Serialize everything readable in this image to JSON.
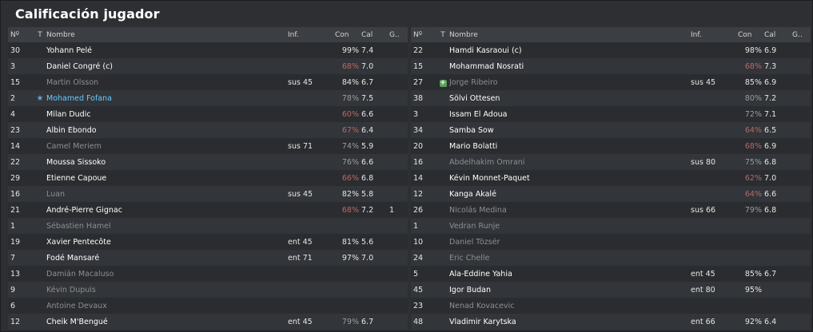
{
  "title": "Calificación jugador",
  "headers": {
    "num": "Nº",
    "t": "T",
    "name": "Nombre",
    "inf": "Inf.",
    "con": "Con",
    "cal": "Cal",
    "g": "G.."
  },
  "colors": {
    "low_condition": "#b56a6a",
    "star": "#66ccff",
    "muted": "#8d8f93"
  },
  "left": [
    {
      "num": "30",
      "name": "Yohann Pelé",
      "inf": "",
      "con": "99%",
      "cal": "7.4",
      "g": "",
      "state": "normal",
      "con_state": "normal",
      "icon": ""
    },
    {
      "num": "3",
      "name": "Daniel Congré (c)",
      "inf": "",
      "con": "68%",
      "cal": "7.0",
      "g": "",
      "state": "normal",
      "con_state": "low",
      "icon": ""
    },
    {
      "num": "15",
      "name": "Martin Olsson",
      "inf": "sus 45",
      "con": "84%",
      "cal": "6.7",
      "g": "",
      "state": "muted",
      "con_state": "normal",
      "icon": ""
    },
    {
      "num": "2",
      "name": "Mohamed Fofana",
      "inf": "",
      "con": "78%",
      "cal": "7.5",
      "g": "",
      "state": "star",
      "con_state": "dim",
      "icon": "star-icon"
    },
    {
      "num": "4",
      "name": "Milan Dudic",
      "inf": "",
      "con": "60%",
      "cal": "6.6",
      "g": "",
      "state": "normal",
      "con_state": "low",
      "icon": ""
    },
    {
      "num": "23",
      "name": "Albin Ebondo",
      "inf": "",
      "con": "67%",
      "cal": "6.4",
      "g": "",
      "state": "normal",
      "con_state": "low",
      "icon": ""
    },
    {
      "num": "14",
      "name": "Camel Meriem",
      "inf": "sus 71",
      "con": "74%",
      "cal": "5.9",
      "g": "",
      "state": "muted",
      "con_state": "dim",
      "icon": ""
    },
    {
      "num": "22",
      "name": "Moussa Sissoko",
      "inf": "",
      "con": "76%",
      "cal": "6.6",
      "g": "",
      "state": "normal",
      "con_state": "dim",
      "icon": ""
    },
    {
      "num": "29",
      "name": "Etienne Capoue",
      "inf": "",
      "con": "66%",
      "cal": "6.8",
      "g": "",
      "state": "normal",
      "con_state": "low",
      "icon": ""
    },
    {
      "num": "16",
      "name": "Luan",
      "inf": "sus 45",
      "con": "82%",
      "cal": "5.8",
      "g": "",
      "state": "muted",
      "con_state": "normal",
      "icon": ""
    },
    {
      "num": "21",
      "name": "André-Pierre Gignac",
      "inf": "",
      "con": "68%",
      "cal": "7.2",
      "g": "1",
      "state": "normal",
      "con_state": "low",
      "icon": ""
    },
    {
      "num": "1",
      "name": "Sébastien Hamel",
      "inf": "",
      "con": "",
      "cal": "",
      "g": "",
      "state": "muted",
      "con_state": "normal",
      "icon": ""
    },
    {
      "num": "19",
      "name": "Xavier Pentecôte",
      "inf": "ent 45",
      "con": "81%",
      "cal": "5.6",
      "g": "",
      "state": "normal",
      "con_state": "normal",
      "icon": ""
    },
    {
      "num": "7",
      "name": "Fodé Mansaré",
      "inf": "ent 71",
      "con": "97%",
      "cal": "7.0",
      "g": "",
      "state": "normal",
      "con_state": "normal",
      "icon": ""
    },
    {
      "num": "13",
      "name": "Damián Macaluso",
      "inf": "",
      "con": "",
      "cal": "",
      "g": "",
      "state": "muted",
      "con_state": "normal",
      "icon": ""
    },
    {
      "num": "9",
      "name": "Kévin Dupuis",
      "inf": "",
      "con": "",
      "cal": "",
      "g": "",
      "state": "muted",
      "con_state": "normal",
      "icon": ""
    },
    {
      "num": "6",
      "name": "Antoine Devaux",
      "inf": "",
      "con": "",
      "cal": "",
      "g": "",
      "state": "muted",
      "con_state": "normal",
      "icon": ""
    },
    {
      "num": "12",
      "name": "Cheik M'Bengué",
      "inf": "ent 45",
      "con": "79%",
      "cal": "6.7",
      "g": "",
      "state": "normal",
      "con_state": "dim",
      "icon": ""
    }
  ],
  "right": [
    {
      "num": "22",
      "name": "Hamdi Kasraoui (c)",
      "inf": "",
      "con": "98%",
      "cal": "6.9",
      "g": "",
      "state": "normal",
      "con_state": "normal",
      "icon": ""
    },
    {
      "num": "15",
      "name": "Mohammad Nosrati",
      "inf": "",
      "con": "68%",
      "cal": "7.3",
      "g": "",
      "state": "normal",
      "con_state": "low",
      "icon": ""
    },
    {
      "num": "27",
      "name": "Jorge Ribeiro",
      "inf": "sus 45",
      "con": "85%",
      "cal": "6.9",
      "g": "",
      "state": "muted",
      "con_state": "normal",
      "icon": "plus-icon"
    },
    {
      "num": "38",
      "name": "Sölvi Ottesen",
      "inf": "",
      "con": "80%",
      "cal": "7.2",
      "g": "",
      "state": "normal",
      "con_state": "dim",
      "icon": ""
    },
    {
      "num": "3",
      "name": "Issam El Adoua",
      "inf": "",
      "con": "72%",
      "cal": "7.1",
      "g": "",
      "state": "normal",
      "con_state": "dim",
      "icon": ""
    },
    {
      "num": "34",
      "name": "Samba Sow",
      "inf": "",
      "con": "64%",
      "cal": "6.5",
      "g": "",
      "state": "normal",
      "con_state": "low",
      "icon": ""
    },
    {
      "num": "20",
      "name": "Mario Bolatti",
      "inf": "",
      "con": "68%",
      "cal": "6.9",
      "g": "",
      "state": "normal",
      "con_state": "low",
      "icon": ""
    },
    {
      "num": "16",
      "name": "Abdelhakim Omrani",
      "inf": "sus 80",
      "con": "75%",
      "cal": "6.8",
      "g": "",
      "state": "muted",
      "con_state": "dim",
      "icon": ""
    },
    {
      "num": "14",
      "name": "Kévin Monnet-Paquet",
      "inf": "",
      "con": "62%",
      "cal": "7.0",
      "g": "",
      "state": "normal",
      "con_state": "low",
      "icon": ""
    },
    {
      "num": "12",
      "name": "Kanga Akalé",
      "inf": "",
      "con": "64%",
      "cal": "6.6",
      "g": "",
      "state": "normal",
      "con_state": "low",
      "icon": ""
    },
    {
      "num": "26",
      "name": "Nicolás Medina",
      "inf": "sus 66",
      "con": "79%",
      "cal": "6.8",
      "g": "",
      "state": "muted",
      "con_state": "dim",
      "icon": ""
    },
    {
      "num": "1",
      "name": "Vedran Runje",
      "inf": "",
      "con": "",
      "cal": "",
      "g": "",
      "state": "muted",
      "con_state": "normal",
      "icon": ""
    },
    {
      "num": "10",
      "name": "Daniel Tözsér",
      "inf": "",
      "con": "",
      "cal": "",
      "g": "",
      "state": "muted",
      "con_state": "normal",
      "icon": ""
    },
    {
      "num": "24",
      "name": "Eric Chelle",
      "inf": "",
      "con": "",
      "cal": "",
      "g": "",
      "state": "muted",
      "con_state": "normal",
      "icon": ""
    },
    {
      "num": "5",
      "name": "Ala-Eddine Yahia",
      "inf": "ent 45",
      "con": "85%",
      "cal": "6.7",
      "g": "",
      "state": "normal",
      "con_state": "normal",
      "icon": ""
    },
    {
      "num": "45",
      "name": "Igor Budan",
      "inf": "ent 80",
      "con": "95%",
      "cal": "",
      "g": "",
      "state": "normal",
      "con_state": "normal",
      "icon": ""
    },
    {
      "num": "23",
      "name": "Nenad Kovacevic",
      "inf": "",
      "con": "",
      "cal": "",
      "g": "",
      "state": "muted",
      "con_state": "normal",
      "icon": ""
    },
    {
      "num": "48",
      "name": "Vladimir Karytska",
      "inf": "ent 66",
      "con": "92%",
      "cal": "6.4",
      "g": "",
      "state": "normal",
      "con_state": "normal",
      "icon": ""
    }
  ]
}
